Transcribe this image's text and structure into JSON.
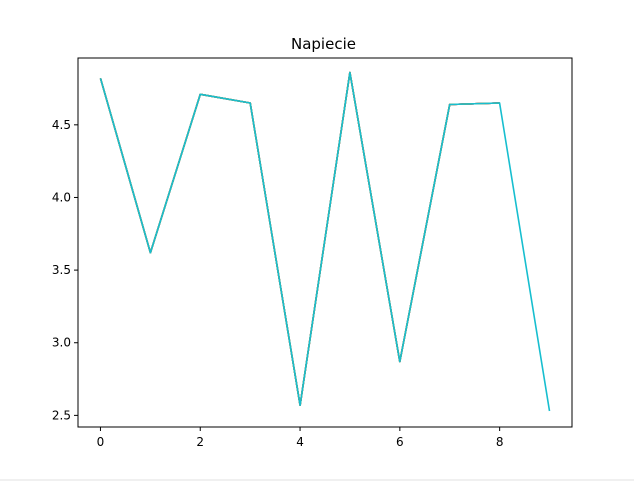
{
  "chart_data": {
    "type": "line",
    "title": "Napiecie",
    "xlabel": "",
    "ylabel": "",
    "x": [
      0,
      1,
      2,
      3,
      4,
      5,
      6,
      7,
      8,
      9
    ],
    "x_ticks": [
      "0",
      "2",
      "4",
      "6",
      "8"
    ],
    "y_ticks": [
      "2.5",
      "3.0",
      "3.5",
      "4.0",
      "4.5"
    ],
    "xlim": [
      -0.45,
      9.45
    ],
    "ylim": [
      2.42,
      4.96
    ],
    "grid": false,
    "series": [
      {
        "color": "#1f77b4",
        "x": [
          0,
          1,
          2,
          3,
          4,
          5,
          6,
          7,
          8
        ],
        "values": [
          4.82,
          3.62,
          4.71,
          4.65,
          2.57,
          4.86,
          2.87,
          4.64,
          4.65
        ]
      },
      {
        "color": "#ff7f0e",
        "x": [
          0,
          1,
          2,
          3,
          4,
          5,
          6,
          7,
          8
        ],
        "values": [
          4.82,
          3.62,
          4.71,
          4.65,
          2.57,
          4.86,
          2.87,
          4.64,
          4.65
        ]
      },
      {
        "color": "#2ca02c",
        "x": [
          0,
          1,
          2,
          3,
          4,
          5,
          6,
          7,
          8
        ],
        "values": [
          4.82,
          3.62,
          4.71,
          4.65,
          2.57,
          4.86,
          2.87,
          4.64,
          4.65
        ]
      },
      {
        "color": "#d62728",
        "x": [
          0,
          1,
          2,
          3,
          4,
          5,
          6,
          7,
          8
        ],
        "values": [
          4.82,
          3.62,
          4.71,
          4.65,
          2.57,
          4.86,
          2.87,
          4.64,
          4.65
        ]
      },
      {
        "color": "#9467bd",
        "x": [
          0,
          1,
          2,
          3,
          4,
          5,
          6,
          7,
          8
        ],
        "values": [
          4.82,
          3.62,
          4.71,
          4.65,
          2.57,
          4.86,
          2.87,
          4.64,
          4.65
        ]
      },
      {
        "color": "#8c564b",
        "x": [
          0,
          1,
          2,
          3,
          4,
          5,
          6,
          7,
          8
        ],
        "values": [
          4.82,
          3.62,
          4.71,
          4.65,
          2.57,
          4.86,
          2.87,
          4.64,
          4.65
        ]
      },
      {
        "color": "#e377c2",
        "x": [
          0,
          1,
          2,
          3,
          4,
          5,
          6,
          7,
          8
        ],
        "values": [
          4.82,
          3.62,
          4.71,
          4.65,
          2.57,
          4.86,
          2.87,
          4.64,
          4.65
        ]
      },
      {
        "color": "#7f7f7f",
        "x": [
          0,
          1,
          2,
          3,
          4,
          5,
          6,
          7,
          8
        ],
        "values": [
          4.82,
          3.62,
          4.71,
          4.65,
          2.57,
          4.86,
          2.87,
          4.64,
          4.65
        ]
      },
      {
        "color": "#bcbd22",
        "x": [
          0,
          1,
          2,
          3,
          4,
          5,
          6,
          7,
          8
        ],
        "values": [
          4.82,
          3.62,
          4.71,
          4.65,
          2.57,
          4.86,
          2.87,
          4.64,
          4.65
        ]
      },
      {
        "color": "#17becf",
        "x": [
          0,
          1,
          2,
          3,
          4,
          5,
          6,
          7,
          8,
          9
        ],
        "values": [
          4.82,
          3.62,
          4.71,
          4.65,
          2.57,
          4.86,
          2.87,
          4.64,
          4.65,
          2.53
        ]
      }
    ]
  }
}
